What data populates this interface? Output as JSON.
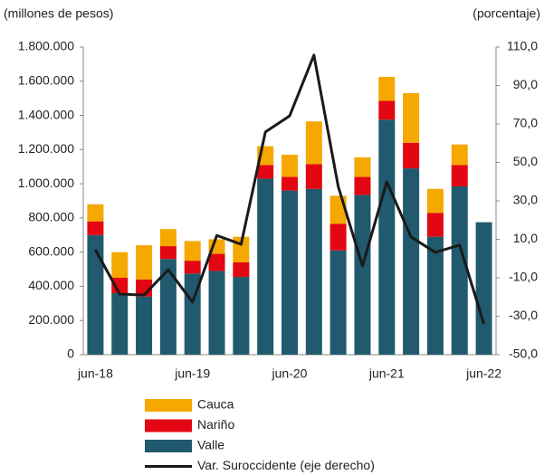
{
  "chart_data": {
    "type": "bar",
    "y_label": "(millones de pesos)",
    "y2_label": "(porcentaje)",
    "categories": [
      "jun-18",
      null,
      null,
      null,
      "jun-19",
      null,
      null,
      null,
      "jun-20",
      null,
      null,
      null,
      "jun-21",
      null,
      null,
      null,
      "jun-22"
    ],
    "series": [
      {
        "name": "Cauca",
        "color": "#f5a800",
        "type": "bar",
        "values": [
          100000,
          150000,
          200000,
          100000,
          115000,
          85000,
          150000,
          110000,
          130000,
          250000,
          165000,
          115000,
          140000,
          290000,
          140000,
          120000,
          null
        ]
      },
      {
        "name": "Nariño",
        "color": "#e30613",
        "type": "bar",
        "values": [
          80000,
          90000,
          100000,
          75000,
          75000,
          100000,
          85000,
          80000,
          80000,
          145000,
          155000,
          105000,
          110000,
          150000,
          140000,
          125000,
          null
        ]
      },
      {
        "name": "Valle",
        "color": "#215a6e",
        "type": "bar",
        "values": [
          700000,
          360000,
          340000,
          560000,
          475000,
          490000,
          455000,
          1030000,
          960000,
          970000,
          610000,
          935000,
          1375000,
          1090000,
          690000,
          985000,
          775000
        ]
      },
      {
        "name": "Var. Suroccidente (eje derecho)",
        "color": "#1a1a1a",
        "type": "line",
        "axis": "y2",
        "values": [
          4.6,
          -18.5,
          -19,
          -5.8,
          -22.7,
          12,
          7.4,
          65.8,
          74.2,
          105.8,
          37.5,
          -3.9,
          39.9,
          11.2,
          3.2,
          7,
          -34
        ]
      }
    ],
    "stacked": true,
    "ylim": [
      0,
      1800000
    ],
    "yticks": [
      0,
      {
        "value": 200000,
        "label": "200.000"
      },
      {
        "value": 400000,
        "label": "400.000"
      },
      {
        "value": 600000,
        "label": "600.000"
      },
      {
        "value": 800000,
        "label": "800.000"
      },
      {
        "value": 1000000,
        "label": "1.000.000"
      },
      {
        "value": 1200000,
        "label": "1.200.000"
      },
      {
        "value": 1400000,
        "label": "1.400.000"
      },
      {
        "value": 1600000,
        "label": "1.600.000"
      },
      {
        "value": 1800000,
        "label": "1.800.000"
      }
    ],
    "y2lim": [
      -50,
      110
    ],
    "y2ticks": [
      {
        "value": -50,
        "label": "-50,0"
      },
      {
        "value": -30,
        "label": "-30,0"
      },
      {
        "value": -10,
        "label": "-10,0"
      },
      {
        "value": 10,
        "label": "10,0"
      },
      {
        "value": 30,
        "label": "30,0"
      },
      {
        "value": 50,
        "label": "50,0"
      },
      {
        "value": 70,
        "label": "70,0"
      },
      {
        "value": 90,
        "label": "90,0"
      },
      {
        "value": 110,
        "label": "110,0"
      }
    ],
    "grid": false,
    "legend": "bottom"
  }
}
